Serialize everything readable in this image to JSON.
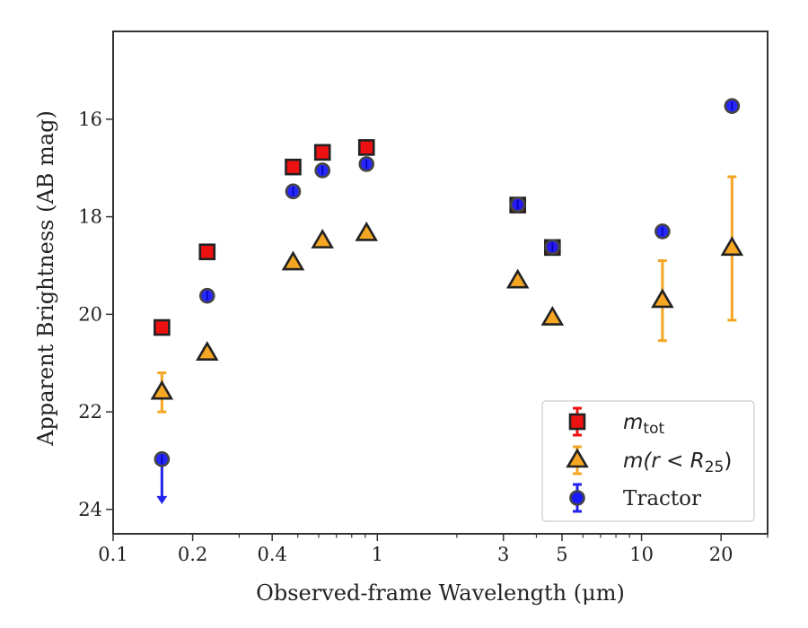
{
  "chart_data": {
    "type": "scatter",
    "xlabel": "Observed-frame Wavelength (μm)",
    "ylabel": "Apparent Brightness (AB mag)",
    "x_scale": "log",
    "xlim": [
      0.1,
      30
    ],
    "ylim": [
      24.5,
      14.2
    ],
    "y_inverted": true,
    "x_ticks": [
      {
        "value": 0.1,
        "label": "0.1"
      },
      {
        "value": 0.2,
        "label": "0.2"
      },
      {
        "value": 0.4,
        "label": "0.4"
      },
      {
        "value": 1,
        "label": "1"
      },
      {
        "value": 3,
        "label": "3"
      },
      {
        "value": 5,
        "label": "5"
      },
      {
        "value": 10,
        "label": "10"
      },
      {
        "value": 20,
        "label": "20"
      }
    ],
    "y_ticks": [
      {
        "value": 16,
        "label": "16"
      },
      {
        "value": 18,
        "label": "18"
      },
      {
        "value": 20,
        "label": "20"
      },
      {
        "value": 22,
        "label": "22"
      },
      {
        "value": 24,
        "label": "24"
      }
    ],
    "grid": false,
    "legend_position": "lower-right",
    "series": [
      {
        "name": "m_tot",
        "legend_label": "m",
        "legend_sub": "tot",
        "marker": "square",
        "color": "#ee1111",
        "edge_color": "#222222",
        "points": [
          {
            "x": 0.153,
            "y": 20.27,
            "err": 0
          },
          {
            "x": 0.227,
            "y": 18.72,
            "err": 0
          },
          {
            "x": 0.48,
            "y": 16.98,
            "err": 0
          },
          {
            "x": 0.62,
            "y": 16.68,
            "err": 0
          },
          {
            "x": 0.91,
            "y": 16.58,
            "err": 0
          },
          {
            "x": 3.4,
            "y": 17.76,
            "err": 0
          },
          {
            "x": 4.6,
            "y": 18.63,
            "err": 0
          }
        ]
      },
      {
        "name": "m(r < R25)",
        "legend_label": "m(r < R",
        "legend_sub": "25",
        "legend_close": ")",
        "marker": "triangle",
        "color": "#f5a623",
        "edge_color": "#222222",
        "errbar_color": "#f5a623",
        "points": [
          {
            "x": 0.153,
            "y": 21.6,
            "err": 0.4
          },
          {
            "x": 0.227,
            "y": 20.8,
            "err": 0.1
          },
          {
            "x": 0.48,
            "y": 18.95,
            "err": 0
          },
          {
            "x": 0.62,
            "y": 18.5,
            "err": 0
          },
          {
            "x": 0.91,
            "y": 18.35,
            "err": 0
          },
          {
            "x": 3.4,
            "y": 19.32,
            "err": 0
          },
          {
            "x": 4.6,
            "y": 20.08,
            "err": 0
          },
          {
            "x": 12,
            "y": 19.72,
            "err": 0.82
          },
          {
            "x": 22,
            "y": 18.65,
            "err": 1.47
          }
        ]
      },
      {
        "name": "Tractor",
        "legend_label": "Tractor",
        "marker": "circle",
        "color": "#1a1aff",
        "edge_color": "#444444",
        "errbar_color": "#2222ee",
        "points": [
          {
            "x": 0.153,
            "y": 22.97,
            "upper_limit": true
          },
          {
            "x": 0.227,
            "y": 19.62
          },
          {
            "x": 0.48,
            "y": 17.48
          },
          {
            "x": 0.62,
            "y": 17.05
          },
          {
            "x": 0.91,
            "y": 16.92
          },
          {
            "x": 3.4,
            "y": 17.75
          },
          {
            "x": 4.6,
            "y": 18.62
          },
          {
            "x": 12,
            "y": 18.3
          },
          {
            "x": 22,
            "y": 15.73
          }
        ]
      }
    ]
  }
}
